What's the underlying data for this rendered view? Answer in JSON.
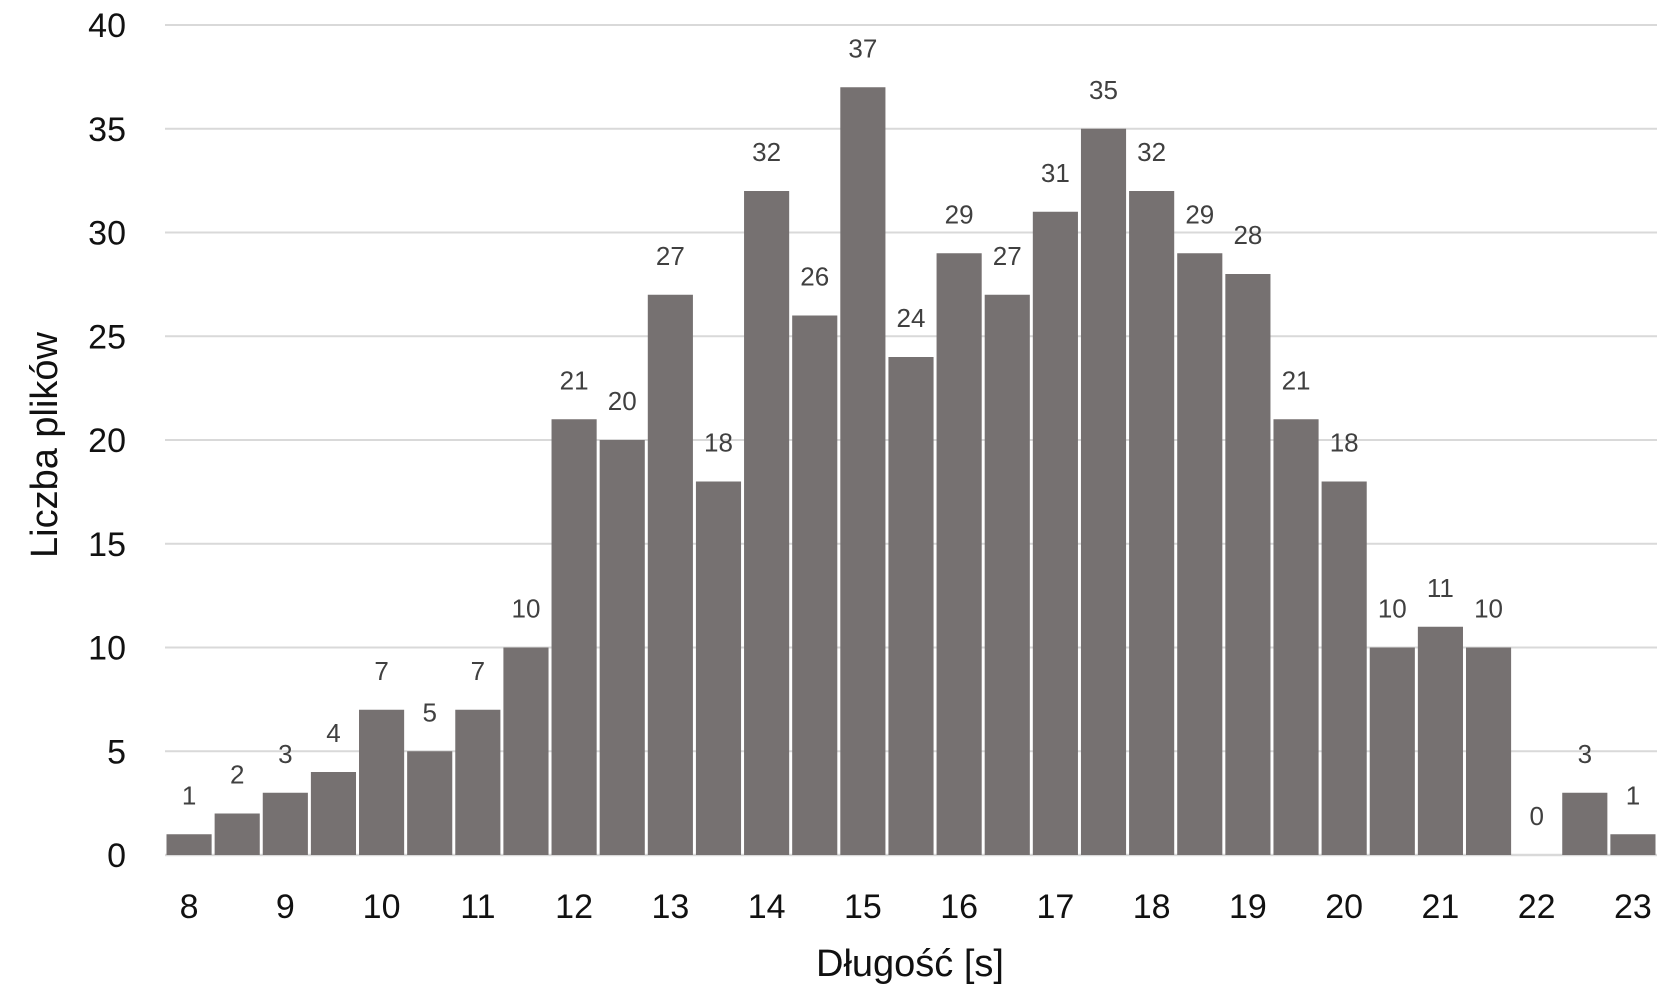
{
  "chart_data": {
    "type": "bar",
    "title": "",
    "xlabel": "Długość [s]",
    "ylabel": "Liczba plików",
    "ylim": [
      0,
      40
    ],
    "yticks": [
      "0",
      "5",
      "10",
      "15",
      "20",
      "25",
      "30",
      "35",
      "40"
    ],
    "xticks": [
      "8",
      "9",
      "10",
      "11",
      "12",
      "13",
      "14",
      "15",
      "16",
      "17",
      "18",
      "19",
      "20",
      "21",
      "22",
      "23"
    ],
    "x_range": [
      8,
      23
    ],
    "bin_width": 0.5,
    "bins_start": [
      8,
      8.5,
      9,
      9.5,
      10,
      10.5,
      11,
      11.5,
      12,
      12.5,
      13,
      13.5,
      14,
      14.5,
      15,
      15.5,
      16,
      16.5,
      17,
      17.5,
      18,
      18.5,
      19,
      19.5,
      20,
      20.5,
      21,
      21.5,
      22,
      22.5,
      23
    ],
    "values": [
      1,
      2,
      3,
      4,
      7,
      5,
      7,
      10,
      21,
      20,
      27,
      18,
      32,
      26,
      37,
      24,
      29,
      27,
      31,
      35,
      32,
      29,
      28,
      21,
      18,
      10,
      11,
      10,
      0,
      3,
      1
    ],
    "data_labels": [
      "1",
      "2",
      "3",
      "4",
      "7",
      "5",
      "7",
      "10",
      "21",
      "20",
      "27",
      "18",
      "32",
      "26",
      "37",
      "24",
      "29",
      "27",
      "31",
      "35",
      "32",
      "29",
      "28",
      "21",
      "18",
      "10",
      "11",
      "10",
      "0",
      "3",
      "1"
    ],
    "grid": true,
    "legend": "none",
    "colors": {
      "bar": "#767171",
      "grid": "#d9d9d9",
      "axis": "#d9d9d9",
      "label": "#404040",
      "text": "#111111"
    }
  }
}
